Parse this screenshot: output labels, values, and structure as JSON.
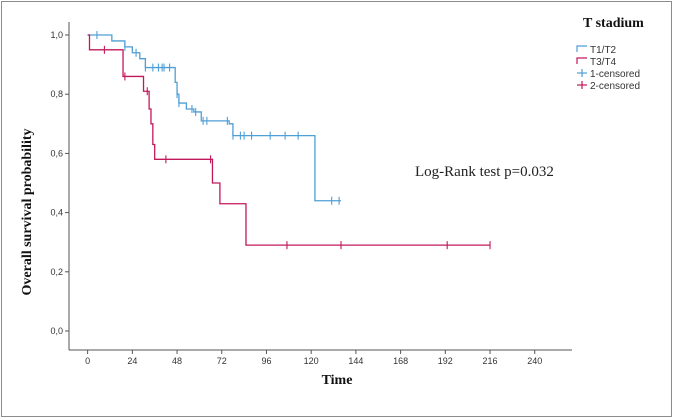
{
  "chart_data": {
    "type": "line",
    "xlabel": "Time",
    "ylabel": "Overall survival probability",
    "xlim": [
      -10,
      260
    ],
    "ylim": [
      0,
      1.0
    ],
    "x_ticks": [
      0,
      24,
      48,
      72,
      96,
      120,
      144,
      168,
      192,
      216,
      240
    ],
    "y_ticks": [
      0.0,
      0.2,
      0.4,
      0.6,
      0.8,
      1.0
    ],
    "y_tick_labels": [
      "0,0",
      "0,2",
      "0,4",
      "0,6",
      "0,8",
      "1,0"
    ],
    "grid": false,
    "legend_title": "T stadium",
    "legend_placement": "top-right",
    "annotation": "Log-Rank test p=0.032",
    "series": [
      {
        "name": "T1/T2",
        "color": "#4f9fd6",
        "steps": [
          [
            0,
            1.0
          ],
          [
            13,
            0.98
          ],
          [
            20,
            0.96
          ],
          [
            24,
            0.94
          ],
          [
            28,
            0.92
          ],
          [
            31,
            0.89
          ],
          [
            47,
            0.84
          ],
          [
            48,
            0.8
          ],
          [
            49,
            0.77
          ],
          [
            53,
            0.75
          ],
          [
            57,
            0.74
          ],
          [
            61,
            0.71
          ],
          [
            76,
            0.7
          ],
          [
            78,
            0.66
          ],
          [
            122,
            0.44
          ],
          [
            136,
            0.44
          ]
        ],
        "censored": [
          5,
          20,
          26,
          31,
          35,
          38,
          40,
          41,
          44,
          48,
          49,
          56,
          58,
          62,
          64,
          75,
          78,
          82,
          84,
          88,
          98,
          106,
          113,
          131,
          135
        ]
      },
      {
        "name": "T3/T4",
        "color": "#c2185b",
        "steps": [
          [
            0,
            1.0
          ],
          [
            1,
            0.95
          ],
          [
            9,
            0.95
          ],
          [
            19,
            0.86
          ],
          [
            30,
            0.81
          ],
          [
            33,
            0.75
          ],
          [
            34,
            0.7
          ],
          [
            35,
            0.63
          ],
          [
            36,
            0.58
          ],
          [
            67,
            0.5
          ],
          [
            71,
            0.43
          ],
          [
            85,
            0.29
          ],
          [
            216,
            0.29
          ]
        ],
        "censored": [
          9,
          20,
          32,
          42,
          66,
          107,
          136,
          193,
          216
        ]
      }
    ],
    "legend_entries": [
      {
        "label": "T1/T2",
        "color": "#4f9fd6",
        "marker": "line"
      },
      {
        "label": "T3/T4",
        "color": "#c2185b",
        "marker": "line"
      },
      {
        "label": "1-censored",
        "color": "#4f9fd6",
        "marker": "cross"
      },
      {
        "label": "2-censored",
        "color": "#c2185b",
        "marker": "cross"
      }
    ]
  }
}
